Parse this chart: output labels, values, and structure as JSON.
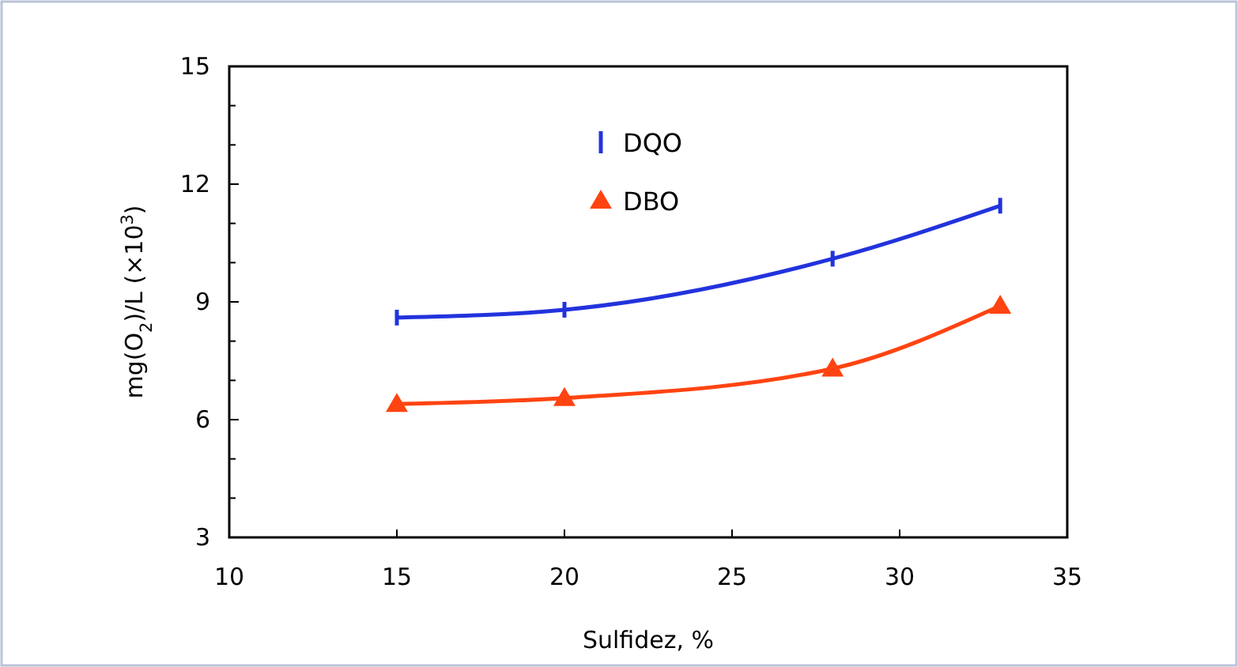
{
  "chart_data": {
    "type": "line",
    "xlabel": "Sulfidez, %",
    "ylabel": "mg(O$_{2}$)/L (×10$^{3}$)",
    "x": [
      15,
      20,
      28,
      33
    ],
    "series": [
      {
        "name": "DQO",
        "color": "#2233dd",
        "marker": "none",
        "values": [
          8.6,
          8.8,
          10.1,
          11.45
        ],
        "errors": [
          0.2,
          0.2,
          0.2,
          0.2
        ]
      },
      {
        "name": "DBO",
        "color": "#ff4411",
        "marker": "triangle",
        "values": [
          6.4,
          6.55,
          7.3,
          8.9
        ]
      }
    ],
    "xlim": [
      10,
      35
    ],
    "xticks": [
      10,
      15,
      20,
      25,
      30,
      35
    ],
    "ylim": [
      3,
      15
    ],
    "yticks": [
      3,
      {
        "value": 4,
        "label": null
      },
      {
        "value": 5,
        "label": null
      },
      6,
      {
        "value": 7,
        "label": null
      },
      {
        "value": 8,
        "label": null
      },
      9,
      {
        "value": 10,
        "label": null
      },
      {
        "value": 11,
        "label": null
      },
      12,
      {
        "value": 13,
        "label": null
      },
      {
        "value": 14,
        "label": null
      },
      15
    ],
    "grid": false,
    "legend": "top",
    "line_style": "solid"
  }
}
